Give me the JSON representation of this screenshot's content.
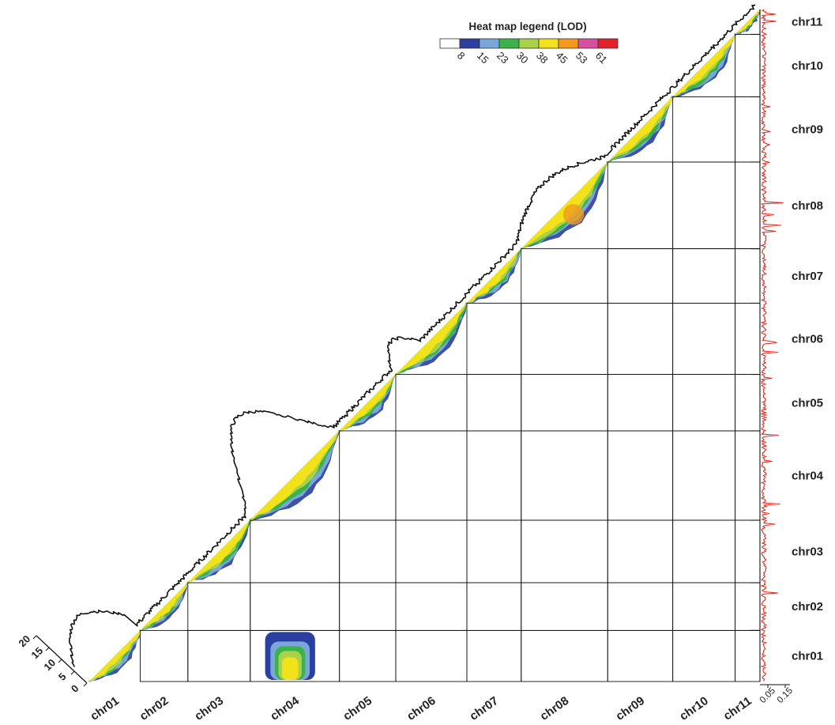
{
  "chart_data": {
    "type": "heatmap",
    "description_type": "linkage-disequilibrium LOD heat map (triangular) with per-chromosome profile curve and side density track",
    "chromosomes": [
      "chr01",
      "chr02",
      "chr03",
      "chr04",
      "chr05",
      "chr06",
      "chr07",
      "chr08",
      "chr09",
      "chr10",
      "chr11"
    ],
    "chromosome_boundaries_fraction": [
      0,
      0.076,
      0.147,
      0.24,
      0.373,
      0.457,
      0.563,
      0.644,
      0.773,
      0.87,
      0.963,
      1.0
    ],
    "legend": {
      "title": "Heat map legend (LOD)",
      "ticks": [
        "8",
        "15",
        "23",
        "30",
        "38",
        "45",
        "53",
        "61"
      ],
      "colors": [
        "#ffffff",
        "#2b3f9e",
        "#7aa6dc",
        "#3cb34a",
        "#a8d24a",
        "#f2e21b",
        "#f39a1e",
        "#d64fa0",
        "#e3212b"
      ]
    },
    "left_axis": {
      "ticks": [
        "0",
        "5",
        "10",
        "15",
        "20"
      ]
    },
    "bottom_right_axis": {
      "ticks": [
        "0.05",
        "0.15"
      ]
    },
    "off_diagonal_block": {
      "row": "chr01",
      "col": "chr04",
      "peak_lod": 45
    },
    "colors": {
      "profile_line": "#111111",
      "density_line": "#e0281e",
      "grid": "#111111"
    }
  }
}
